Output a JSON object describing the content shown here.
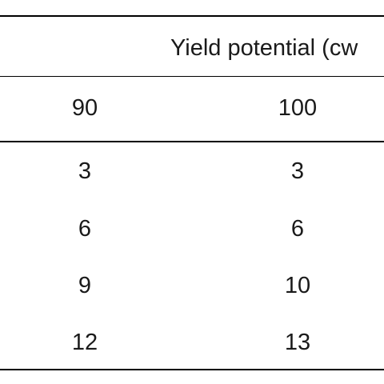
{
  "table": {
    "group_header": "Yield potential (cw",
    "columns": [
      "90",
      "100"
    ],
    "rows": [
      [
        "3",
        "3"
      ],
      [
        "6",
        "6"
      ],
      [
        "9",
        "10"
      ],
      [
        "12",
        "13"
      ]
    ]
  }
}
